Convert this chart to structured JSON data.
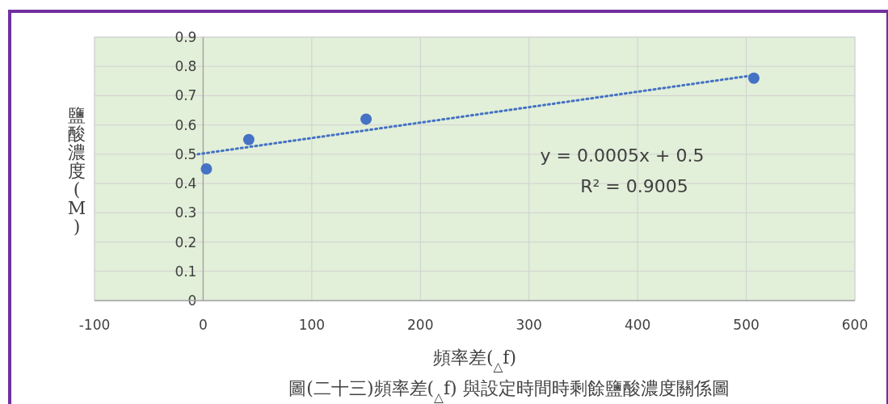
{
  "chart_data": {
    "type": "scatter",
    "xlabel": "頻率差($_{△}$f)",
    "ylabel": "鹽酸濃度(M)",
    "series": [
      {
        "type": "scatter",
        "color": "#4472c4",
        "marker": "circle",
        "x": [
          3,
          42,
          150,
          507
        ],
        "values": [
          0.45,
          0.55,
          0.62,
          0.76
        ]
      },
      {
        "type": "line",
        "color": "#4472c4",
        "marker": "none",
        "line_style": "dotted",
        "x": [
          -5,
          507
        ],
        "values": [
          0.5,
          0.77
        ]
      }
    ],
    "xlim": [
      -100,
      600
    ],
    "xticks": [
      -100,
      0,
      100,
      200,
      300,
      400,
      500,
      600
    ],
    "ylim": [
      0,
      0.9
    ],
    "yticks": [
      0,
      0.1,
      0.2,
      0.3,
      0.4,
      0.5,
      0.6,
      0.7,
      0.8,
      0.9
    ],
    "grid": true,
    "annotations": [
      "y = 0.0005x + 0.5",
      "R² = 0.9005",
      "圖(二十三)頻率差($_{△}$f) 與設定時間時剩餘鹽酸濃度關係圖"
    ]
  }
}
